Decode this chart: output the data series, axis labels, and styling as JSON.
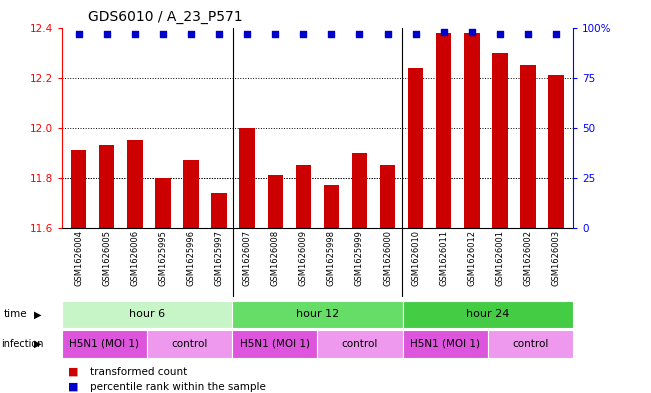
{
  "title": "GDS6010 / A_23_P571",
  "samples": [
    "GSM1626004",
    "GSM1626005",
    "GSM1626006",
    "GSM1625995",
    "GSM1625996",
    "GSM1625997",
    "GSM1626007",
    "GSM1626008",
    "GSM1626009",
    "GSM1625998",
    "GSM1625999",
    "GSM1626000",
    "GSM1626010",
    "GSM1626011",
    "GSM1626012",
    "GSM1626001",
    "GSM1626002",
    "GSM1626003"
  ],
  "bar_values": [
    11.91,
    11.93,
    11.95,
    11.8,
    11.87,
    11.74,
    12.0,
    11.81,
    11.85,
    11.77,
    11.9,
    11.85,
    12.24,
    12.38,
    12.38,
    12.3,
    12.25,
    12.21
  ],
  "percentile_values": [
    97,
    97,
    97,
    97,
    97,
    97,
    97,
    97,
    97,
    97,
    97,
    97,
    97,
    98,
    98,
    97,
    97,
    97
  ],
  "bar_color": "#cc0000",
  "dot_color": "#0000cc",
  "ylim_left": [
    11.6,
    12.4
  ],
  "ylim_right": [
    0,
    100
  ],
  "yticks_left": [
    11.6,
    11.8,
    12.0,
    12.2,
    12.4
  ],
  "yticks_right": [
    0,
    25,
    50,
    75,
    100
  ],
  "ytick_labels_right": [
    "0",
    "25",
    "50",
    "75",
    "100%"
  ],
  "grid_values": [
    11.8,
    12.0,
    12.2
  ],
  "time_groups": [
    {
      "label": "hour 6",
      "start": 0,
      "end": 6,
      "color": "#c8f5c8"
    },
    {
      "label": "hour 12",
      "start": 6,
      "end": 12,
      "color": "#66dd66"
    },
    {
      "label": "hour 24",
      "start": 12,
      "end": 18,
      "color": "#44cc44"
    }
  ],
  "infection_groups": [
    {
      "label": "H5N1 (MOI 1)",
      "start": 0,
      "end": 3,
      "color": "#dd55dd"
    },
    {
      "label": "control",
      "start": 3,
      "end": 6,
      "color": "#ee99ee"
    },
    {
      "label": "H5N1 (MOI 1)",
      "start": 6,
      "end": 9,
      "color": "#dd55dd"
    },
    {
      "label": "control",
      "start": 9,
      "end": 12,
      "color": "#ee99ee"
    },
    {
      "label": "H5N1 (MOI 1)",
      "start": 12,
      "end": 15,
      "color": "#dd55dd"
    },
    {
      "label": "control",
      "start": 15,
      "end": 18,
      "color": "#ee99ee"
    }
  ],
  "legend_items": [
    {
      "label": "transformed count",
      "color": "#cc0000"
    },
    {
      "label": "percentile rank within the sample",
      "color": "#0000cc"
    }
  ],
  "title_fontsize": 10,
  "tick_fontsize": 7.5,
  "sample_fontsize": 6,
  "row_fontsize": 8,
  "legend_fontsize": 7.5
}
